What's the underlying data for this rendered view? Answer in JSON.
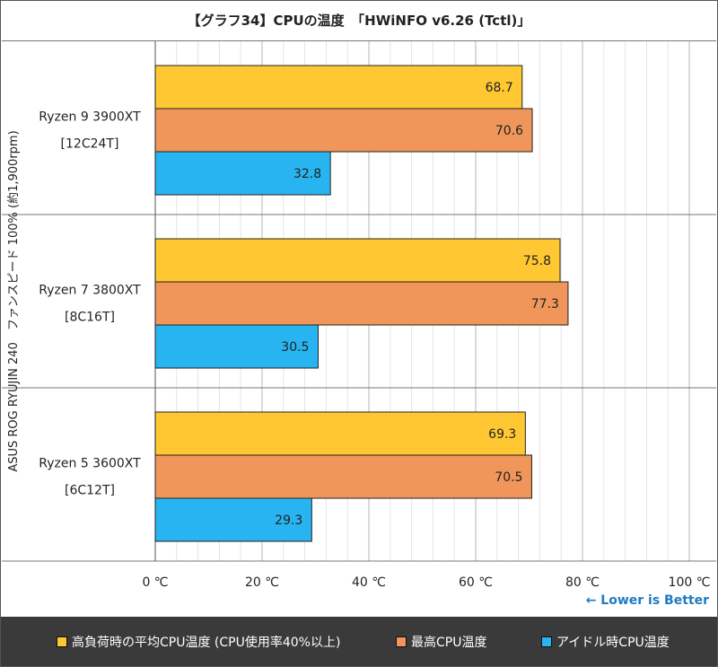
{
  "chart_data": {
    "type": "bar",
    "orientation": "horizontal",
    "title": "【グラフ34】CPUの温度　「HWiNFO v6.26 (Tctl)」",
    "ylabel": "ASUS ROG RYUJIN 240　ファンスピード 100% (約1,900rpm)",
    "categories": [
      {
        "name": "Ryzen 9 3900XT",
        "sub": "[12C24T]"
      },
      {
        "name": "Ryzen 7 3800XT",
        "sub": "[8C16T]"
      },
      {
        "name": "Ryzen 5 3600XT",
        "sub": "[6C12T]"
      }
    ],
    "series": [
      {
        "name": "高負荷時の平均CPU温度 (CPU使用率40%以上)",
        "color": "#ffc832",
        "values": [
          68.7,
          75.8,
          69.3
        ]
      },
      {
        "name": "最高CPU温度",
        "color": "#f0965a",
        "values": [
          70.6,
          77.3,
          70.5
        ]
      },
      {
        "name": "アイドル時CPU温度",
        "color": "#28b4f0",
        "values": [
          32.8,
          30.5,
          29.3
        ]
      }
    ],
    "xlim": [
      0,
      100
    ],
    "xticks": [
      "0 ℃",
      "20 ℃",
      "40 ℃",
      "60 ℃",
      "80 ℃",
      "100 ℃"
    ],
    "grid": true,
    "legend_position": "bottom",
    "note": "← Lower is Better"
  }
}
